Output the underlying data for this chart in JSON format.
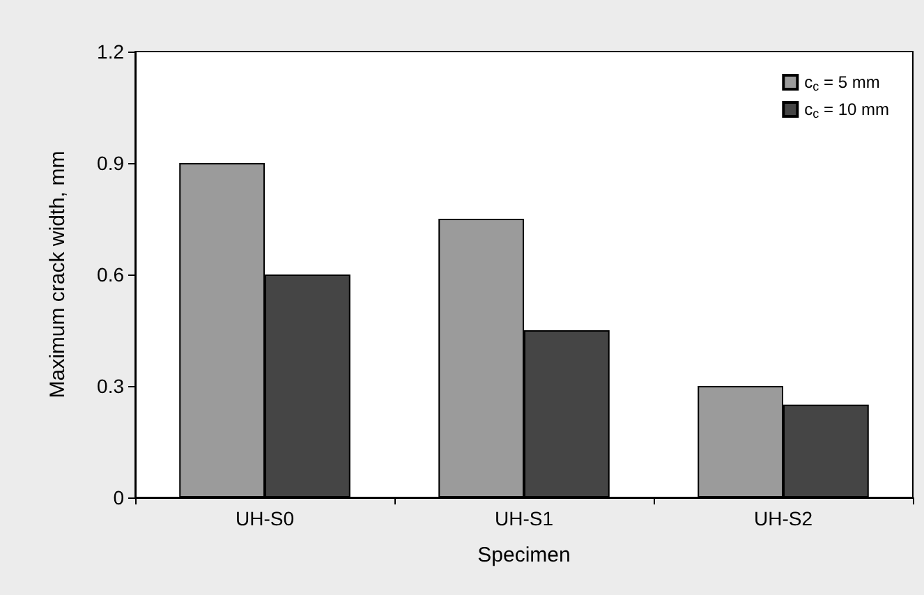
{
  "chart_data": {
    "type": "bar",
    "xlabel": "Specimen",
    "ylabel": "Maximum crack width, mm",
    "categories": [
      "UH-S0",
      "UH-S1",
      "UH-S2"
    ],
    "series": [
      {
        "name": "c$_{c}$ = 5 mm",
        "color": "#9b9b9b",
        "values": [
          0.9,
          0.75,
          0.3
        ]
      },
      {
        "name": "c$_{c}$ = 10 mm",
        "color": "#454545",
        "values": [
          0.6,
          0.45,
          0.25
        ]
      }
    ],
    "ylim": [
      0,
      1.2
    ],
    "yticks": [
      0,
      0.3,
      0.6,
      0.9,
      1.2
    ],
    "grid": false,
    "legend": "top right"
  }
}
